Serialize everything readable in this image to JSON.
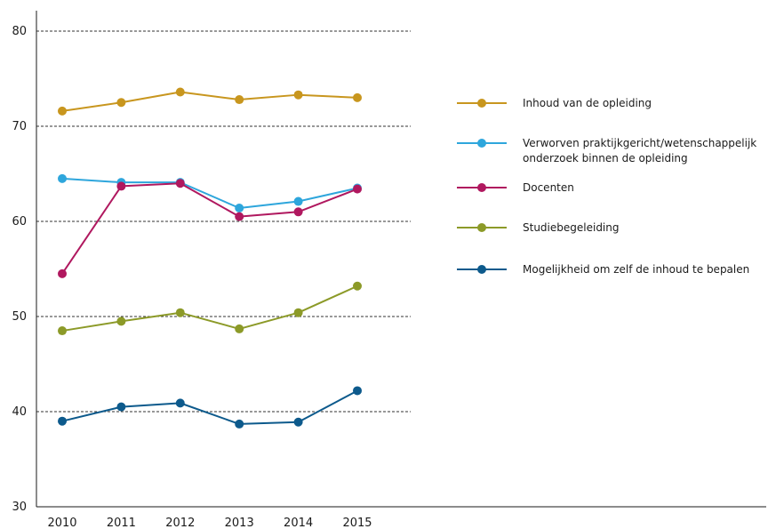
{
  "chart_data": {
    "type": "line",
    "x": [
      "2010",
      "2011",
      "2012",
      "2013",
      "2014",
      "2015"
    ],
    "ylim": [
      30,
      80
    ],
    "yticks": [
      30,
      40,
      50,
      60,
      70,
      80
    ],
    "grid": "dashed horizontal",
    "legend_position": "right",
    "series": [
      {
        "name": "Inhoud van de opleiding",
        "color": "#c8961e",
        "values": [
          71.6,
          72.5,
          73.6,
          72.8,
          73.3,
          73.0
        ]
      },
      {
        "name": "Verworven praktijkgericht/wetenschappelijk onderzoek binnen de opleiding",
        "legend_lines": [
          "Verworven praktijkgericht/wetenschappelijk",
          "onderzoek binnen de opleiding"
        ],
        "color": "#2ea6dc",
        "values": [
          64.5,
          64.1,
          64.1,
          61.4,
          62.1,
          63.5
        ]
      },
      {
        "name": "Docenten",
        "color": "#b0185f",
        "values": [
          54.5,
          63.7,
          64.0,
          60.5,
          61.0,
          63.4
        ]
      },
      {
        "name": "Studiebegeleiding",
        "color": "#8c9a28",
        "values": [
          48.5,
          49.5,
          50.4,
          48.7,
          50.4,
          53.2
        ]
      },
      {
        "name": "Mogelijkheid om zelf de inhoud te bepalen",
        "color": "#0d5a8c",
        "values": [
          39.0,
          40.5,
          40.9,
          38.7,
          38.9,
          42.2
        ]
      }
    ]
  }
}
